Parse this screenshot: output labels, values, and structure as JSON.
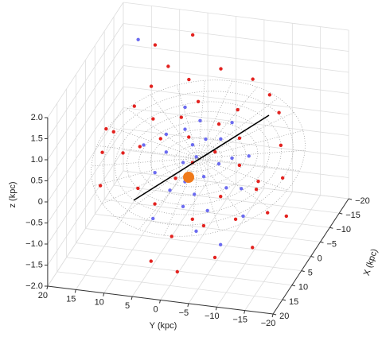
{
  "chart_data": {
    "type": "scatter3d",
    "xlabel": "X (kpc)",
    "ylabel": "Y (kpc)",
    "zlabel": "z (kpc)",
    "xlim": [
      -20,
      20
    ],
    "ylim": [
      -20,
      20
    ],
    "zlim": [
      -2,
      2
    ],
    "xticks": [
      {
        "value": -20,
        "label": "−20"
      },
      {
        "value": -15,
        "label": "−15"
      },
      {
        "value": -10,
        "label": "−10"
      },
      {
        "value": -5,
        "label": "−5"
      },
      0,
      5,
      10,
      15,
      20
    ],
    "yticks": [
      20,
      15,
      10,
      5,
      0,
      {
        "value": -5,
        "label": "−5"
      },
      {
        "value": -10,
        "label": "−10"
      },
      {
        "value": -15,
        "label": "−15"
      },
      {
        "value": -20,
        "label": "−20"
      }
    ],
    "zticks": [
      {
        "value": 2,
        "label": "2.0"
      },
      1.5,
      {
        "value": 1,
        "label": "1.0"
      },
      0.5,
      0,
      {
        "value": -0.5,
        "label": "−0.5"
      },
      {
        "value": -1,
        "label": "−1.0"
      },
      {
        "value": -1.5,
        "label": "−1.5"
      },
      {
        "value": -2,
        "label": "−2.0"
      }
    ],
    "grid": true,
    "series": [
      {
        "color": "#e3221f",
        "x": [
          -5,
          -2,
          3,
          6,
          -8,
          -10,
          0,
          2,
          4,
          -3,
          -6,
          -12,
          -9,
          -4,
          0,
          2,
          5,
          8,
          10,
          12,
          14,
          11,
          8,
          6,
          9,
          15,
          13,
          7,
          3,
          -2,
          -7,
          -11,
          -14,
          16,
          4,
          1,
          -1,
          3,
          -15,
          -13,
          10,
          17,
          6,
          -5,
          1
        ],
        "y": [
          10,
          12,
          14,
          15,
          8,
          5,
          8,
          6,
          9,
          4,
          2,
          0,
          -4,
          -6,
          -3,
          -8,
          -12,
          -15,
          -10,
          -5,
          0,
          4,
          8,
          2,
          -2,
          -8,
          -14,
          -18,
          -16,
          -14,
          -12,
          -9,
          -5,
          3,
          12,
          16,
          2,
          0,
          6,
          12,
          14,
          -2,
          -6,
          -2,
          -11
        ],
        "z": [
          1.2,
          0.9,
          0.6,
          0.3,
          1.5,
          1.1,
          0.8,
          0.5,
          0.4,
          0.7,
          0.9,
          1.3,
          0.6,
          0.3,
          0.2,
          0.1,
          -0.2,
          -0.5,
          -0.6,
          -0.7,
          -0.9,
          -0.4,
          -0.3,
          -0.1,
          -0.8,
          -1.2,
          -1.0,
          -0.6,
          0.0,
          0.4,
          0.8,
          0.9,
          1.0,
          -1.4,
          0.2,
          0.5,
          0.4,
          0.1,
          1.8,
          1.6,
          -0.2,
          -1.5,
          -0.4,
          0.5,
          -0.3
        ]
      },
      {
        "color": "#6c6cf0",
        "x": [
          0,
          1,
          -1,
          2,
          3,
          -2,
          1,
          4,
          -3,
          2,
          5,
          0,
          -4,
          6,
          3,
          7,
          -1,
          8,
          4,
          -5,
          10,
          2,
          6,
          -6,
          9,
          12,
          -10,
          0,
          5
        ],
        "y": [
          1,
          0,
          -1,
          2,
          -2,
          3,
          -4,
          1,
          -3,
          5,
          -1,
          -6,
          1,
          3,
          -6,
          -4,
          6,
          0,
          -9,
          4,
          -3,
          9,
          -10,
          -4,
          5,
          -8,
          14,
          -9,
          6
        ],
        "z": [
          0.3,
          0.1,
          0.4,
          0.0,
          -0.2,
          0.5,
          0.0,
          -0.3,
          0.3,
          0.2,
          -0.5,
          0.1,
          0.6,
          -0.4,
          -0.4,
          -0.7,
          0.4,
          -0.6,
          -0.3,
          0.8,
          -1.0,
          0.3,
          -0.8,
          0.5,
          -0.9,
          -1.1,
          1.9,
          0.2,
          -0.1
        ]
      }
    ]
  }
}
